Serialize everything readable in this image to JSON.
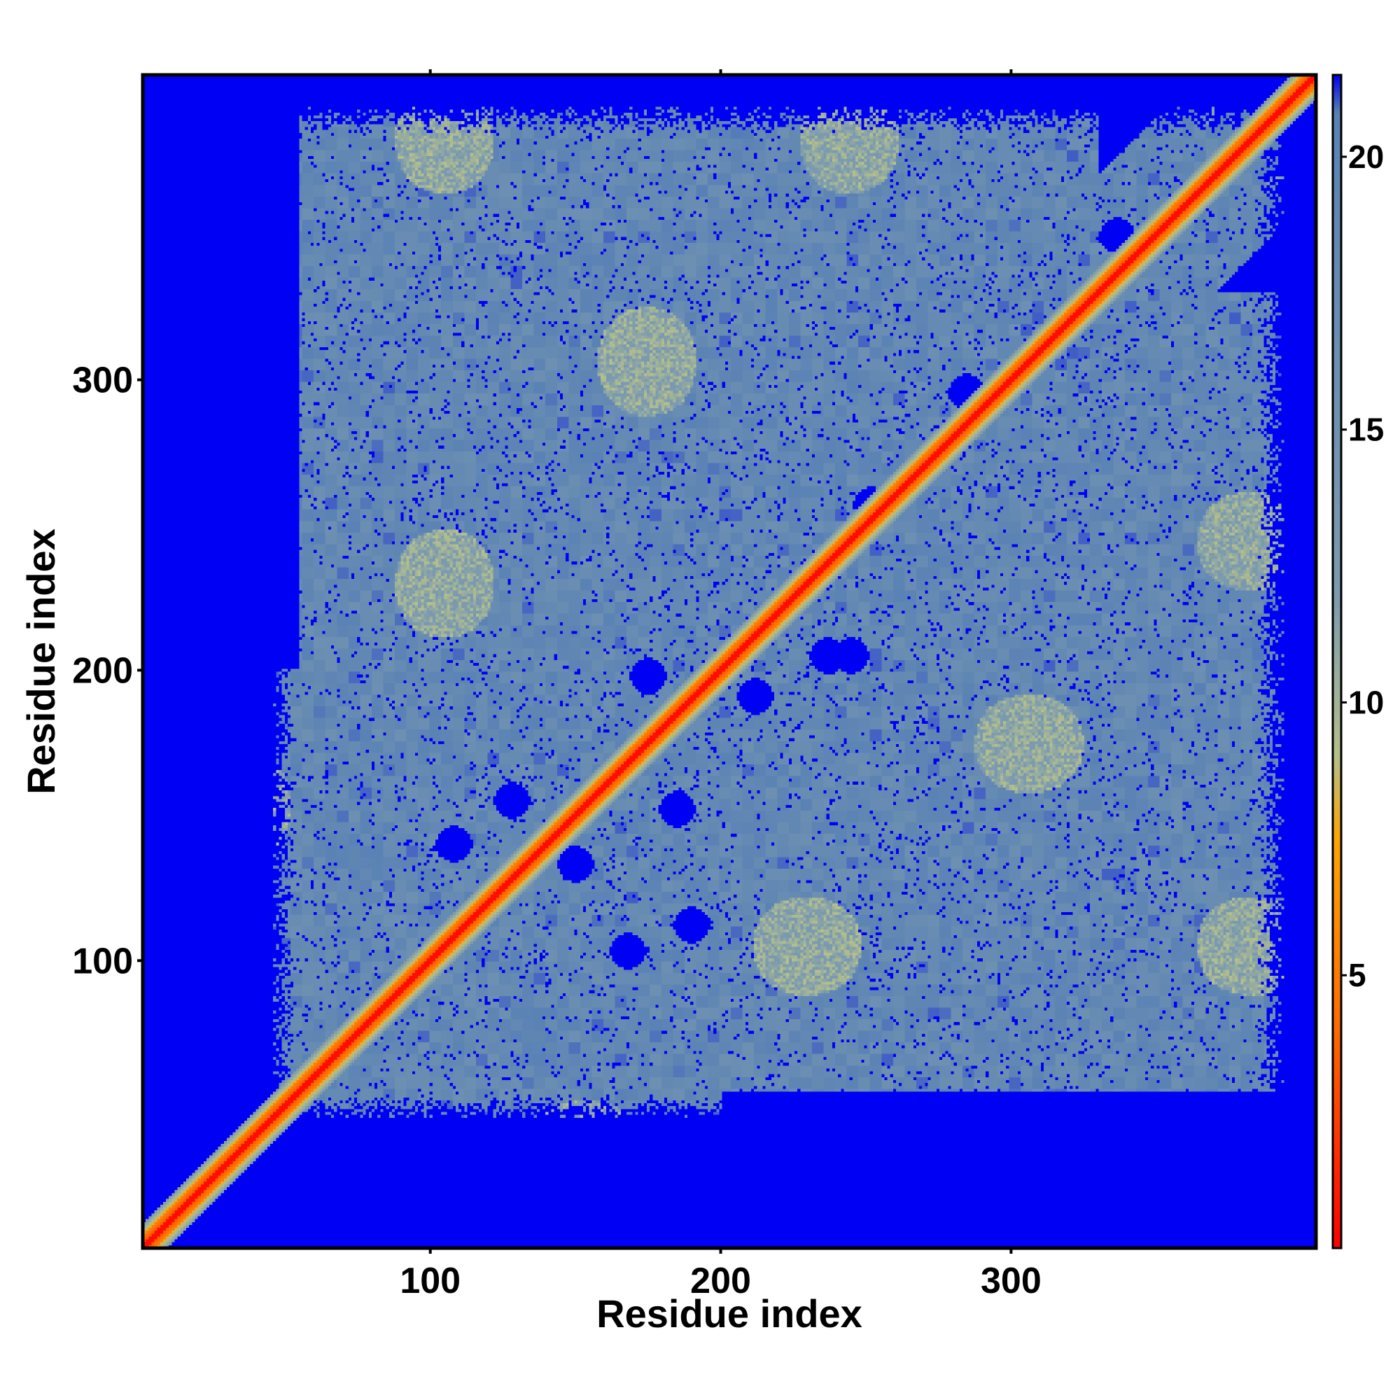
{
  "chart_data": {
    "type": "heatmap",
    "title": "",
    "xlabel": "Residue index",
    "ylabel": "Residue index",
    "xlim": [
      1,
      405
    ],
    "ylim": [
      1,
      405
    ],
    "x_ticks": [
      100,
      200,
      300
    ],
    "y_ticks": [
      100,
      200,
      300
    ],
    "x_tick_labels": [
      "100",
      "200",
      "300"
    ],
    "y_tick_labels": [
      "100",
      "200",
      "300"
    ],
    "colorbar": {
      "range": [
        0,
        21.5
      ],
      "ticks": [
        5,
        10,
        15,
        20
      ],
      "tick_labels": [
        "5",
        "10",
        "15",
        "20"
      ],
      "stops": [
        {
          "value": 0,
          "color": "#ff0000"
        },
        {
          "value": 4,
          "color": "#ff6a00"
        },
        {
          "value": 7.5,
          "color": "#ffa500"
        },
        {
          "value": 9,
          "color": "#b6c08a"
        },
        {
          "value": 12,
          "color": "#7c9bb0"
        },
        {
          "value": 20.8,
          "color": "#5a82b4"
        },
        {
          "value": 21.5,
          "color": "#0000f5"
        }
      ]
    },
    "cutoff_value": 21.5,
    "cutoff_color": "#0000f5",
    "diagonal_color": "#ff0000",
    "grid": false
  }
}
